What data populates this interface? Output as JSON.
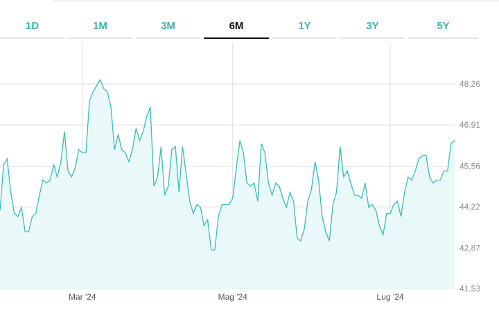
{
  "tabs": [
    {
      "label": "1D",
      "active": false
    },
    {
      "label": "1M",
      "active": false
    },
    {
      "label": "3M",
      "active": false
    },
    {
      "label": "6M",
      "active": true
    },
    {
      "label": "1Y",
      "active": false
    },
    {
      "label": "3Y",
      "active": false
    },
    {
      "label": "5Y",
      "active": false
    }
  ],
  "colors": {
    "accent": "#37b7b1",
    "line": "#3bbcb6",
    "fill": "#e9f8f8",
    "active_tab": "#111111",
    "grid": "#dddddd"
  },
  "chart_data": {
    "type": "area",
    "title": "",
    "xlabel": "",
    "ylabel": "",
    "ylim": [
      41.53,
      49.5
    ],
    "y_ticks": [
      "48,26",
      "46,91",
      "45,56",
      "44,22",
      "42,87",
      "41,53"
    ],
    "y_tick_values": [
      48.26,
      46.91,
      45.56,
      44.22,
      42.87,
      41.53
    ],
    "x_ticks": [
      {
        "label": "Mar '24",
        "index": 23
      },
      {
        "label": "Mag '24",
        "index": 65
      },
      {
        "label": "Lug '24",
        "index": 109
      }
    ],
    "grid": true,
    "series": [
      {
        "values": [
          44.1,
          45.6,
          45.8,
          44.7,
          44.0,
          43.9,
          44.2,
          43.4,
          43.4,
          43.9,
          44.0,
          44.6,
          45.1,
          45.0,
          45.1,
          45.6,
          45.2,
          45.7,
          46.7,
          45.4,
          45.2,
          45.5,
          46.1,
          46.0,
          46.0,
          47.7,
          48.0,
          48.2,
          48.4,
          48.1,
          48.0,
          47.5,
          46.1,
          46.6,
          46.1,
          46.0,
          45.7,
          46.1,
          46.8,
          46.4,
          46.7,
          47.2,
          47.5,
          44.9,
          45.2,
          46.2,
          44.6,
          44.9,
          46.1,
          46.2,
          44.7,
          46.2,
          45.3,
          44.4,
          44.0,
          44.3,
          44.2,
          43.6,
          43.8,
          42.8,
          42.8,
          43.9,
          44.3,
          44.3,
          44.3,
          44.5,
          45.5,
          46.4,
          46.0,
          45.0,
          44.9,
          45.0,
          44.4,
          46.3,
          46.0,
          45.0,
          44.6,
          45.0,
          44.9,
          44.5,
          44.2,
          44.7,
          44.4,
          43.2,
          43.1,
          43.5,
          44.4,
          44.8,
          45.7,
          45.1,
          43.9,
          43.4,
          43.1,
          44.3,
          44.7,
          46.2,
          45.2,
          45.4,
          45.0,
          44.6,
          44.6,
          44.5,
          45.0,
          44.2,
          44.3,
          44.1,
          43.6,
          43.3,
          44.0,
          44.0,
          44.3,
          44.4,
          43.9,
          44.7,
          45.2,
          45.1,
          45.4,
          45.8,
          45.9,
          45.9,
          45.2,
          45.0,
          45.1,
          45.1,
          45.4,
          45.4,
          46.3,
          46.4
        ]
      }
    ]
  }
}
